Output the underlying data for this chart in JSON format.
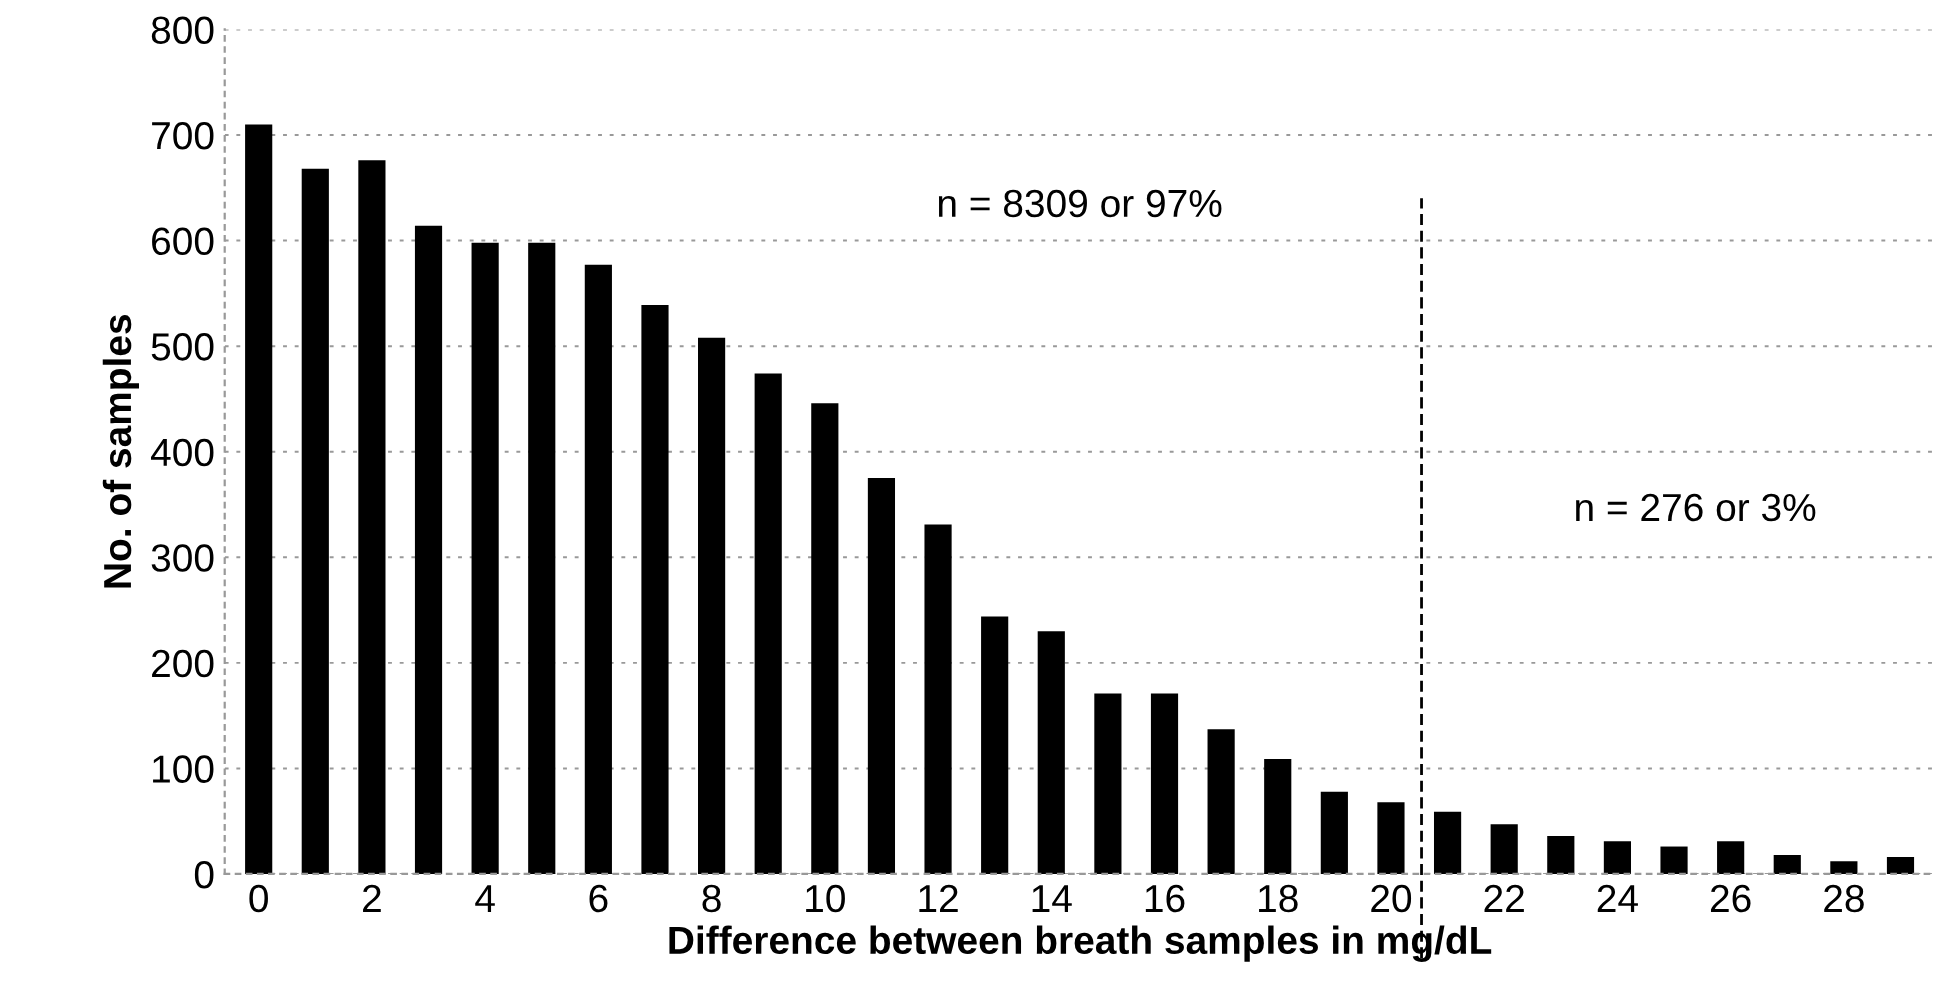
{
  "chart_data": {
    "type": "bar",
    "xlabel": "Difference between breath samples in mg/dL",
    "ylabel": "No. of samples",
    "categories": [
      "0",
      null,
      "2",
      null,
      "4",
      null,
      "6",
      null,
      "8",
      null,
      "10",
      null,
      "12",
      null,
      "14",
      null,
      "16",
      null,
      "18",
      null,
      "20",
      null,
      "22",
      null,
      "24",
      null,
      "26",
      null,
      "28",
      null
    ],
    "values": [
      710,
      668,
      676,
      614,
      598,
      598,
      577,
      539,
      508,
      474,
      446,
      375,
      331,
      244,
      230,
      171,
      171,
      137,
      109,
      78,
      68,
      59,
      47,
      36,
      31,
      26,
      31,
      18,
      12,
      16
    ],
    "color": "#000000",
    "ylim": [
      0,
      800
    ],
    "yticks": [
      0,
      100,
      200,
      300,
      400,
      500,
      600,
      700,
      800
    ],
    "grid": "y",
    "annotations": [
      "n = 8309 or 97%",
      "n = 276 or 3%"
    ]
  }
}
